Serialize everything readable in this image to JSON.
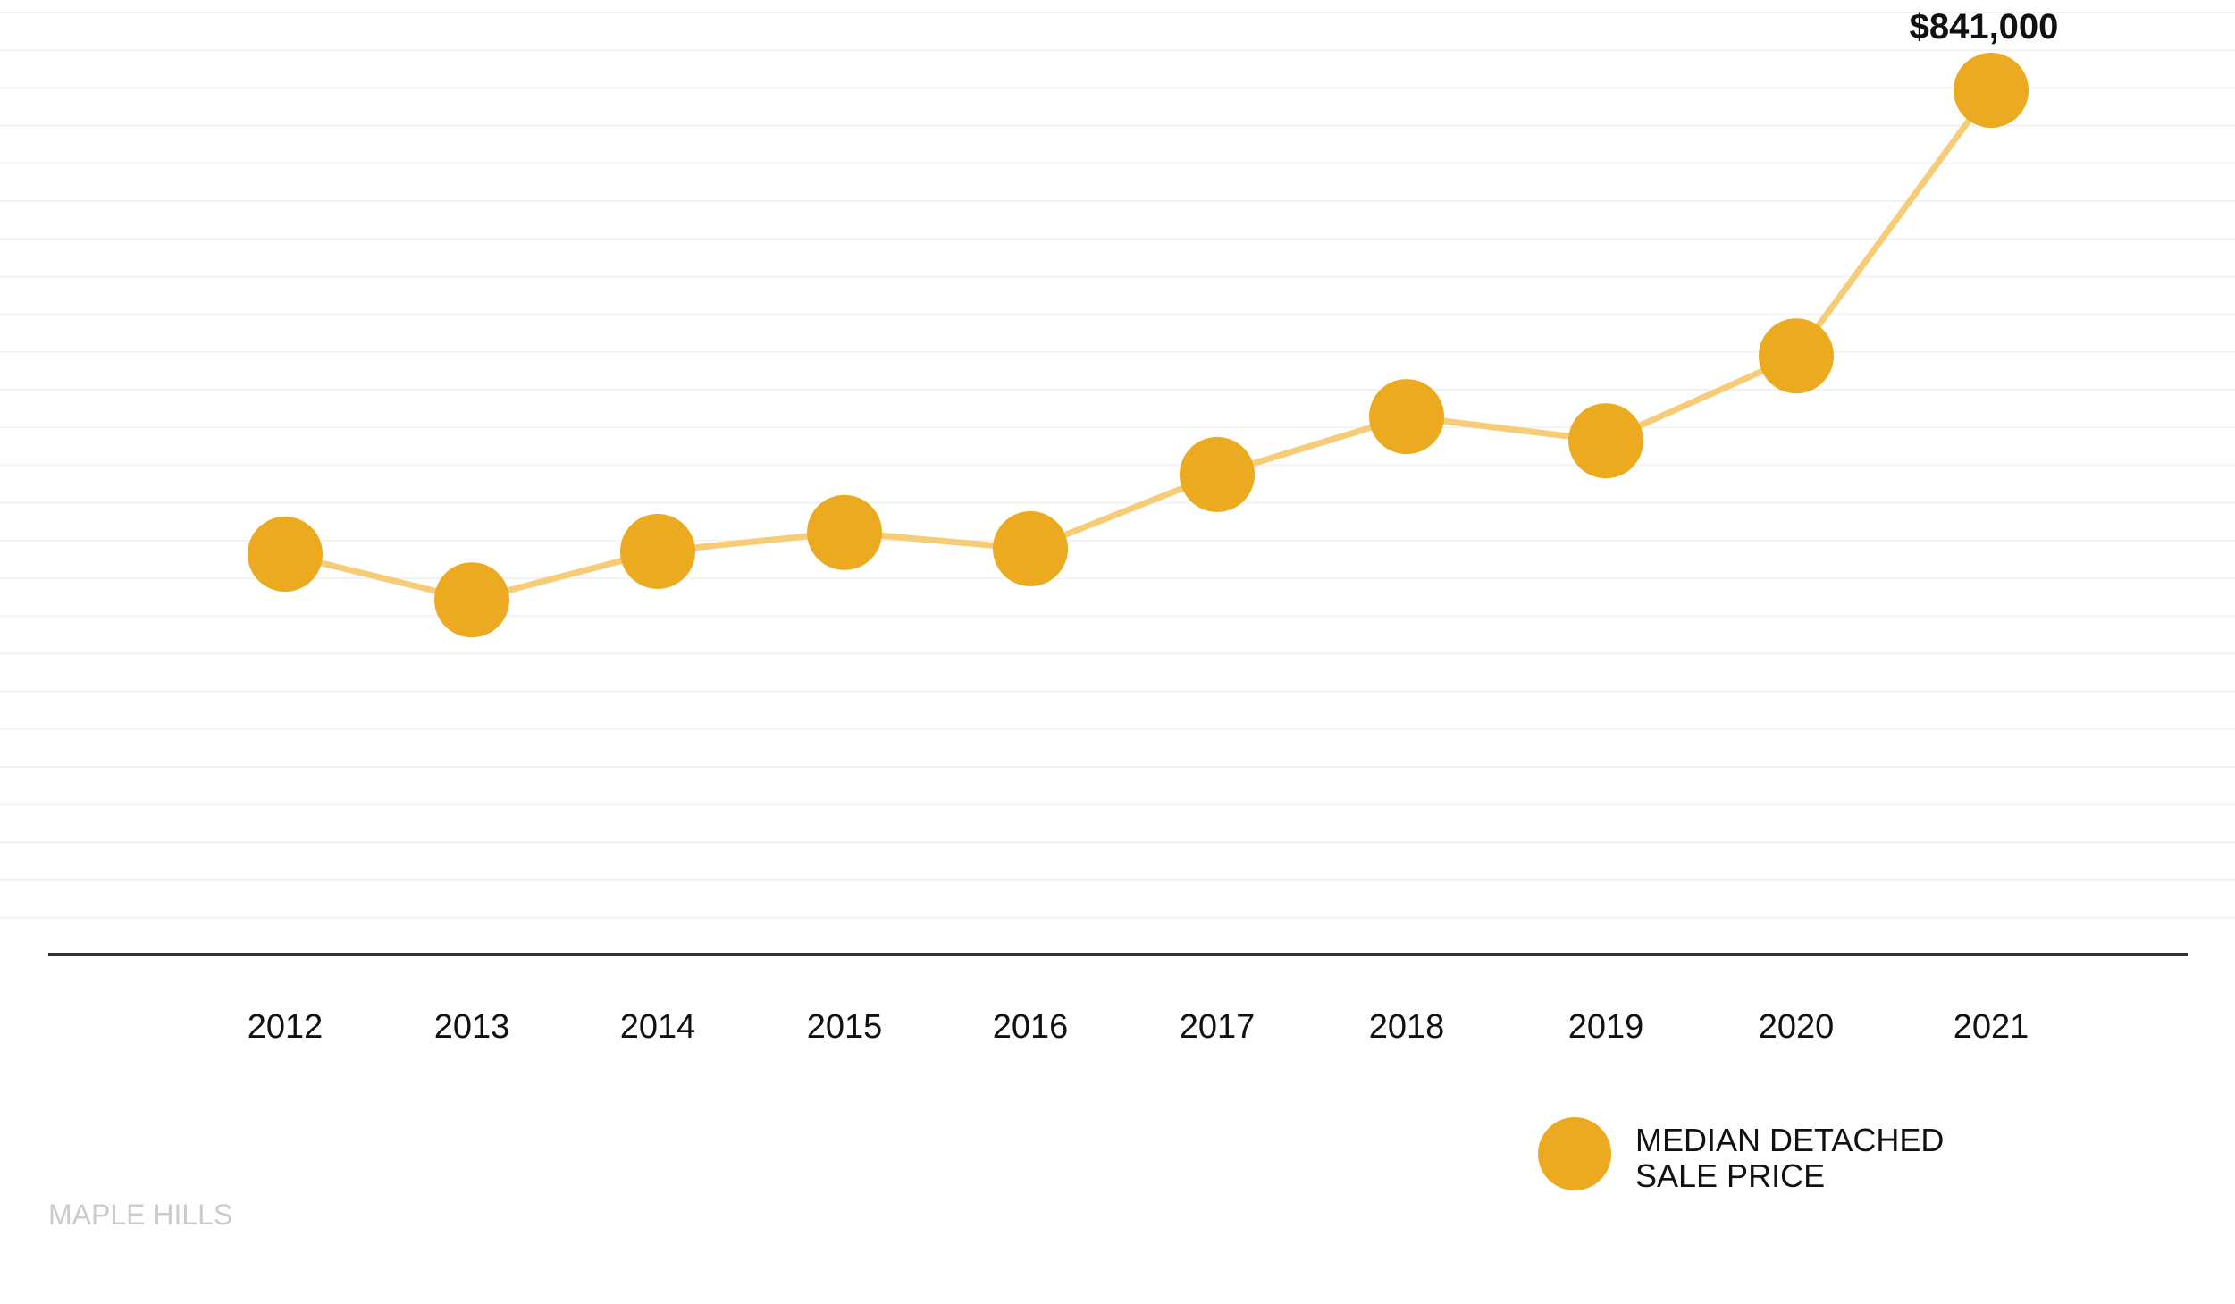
{
  "chart_data": {
    "type": "line",
    "categories": [
      "2012",
      "2013",
      "2014",
      "2015",
      "2016",
      "2017",
      "2018",
      "2019",
      "2020",
      "2021"
    ],
    "series": [
      {
        "name": "MEDIAN DETACHED SALE PRICE",
        "values": [
          497000,
          463000,
          499000,
          513000,
          501000,
          556000,
          599000,
          581000,
          644000,
          841000
        ],
        "color": "#EBAA20",
        "line_color": "#F6CC77"
      }
    ],
    "data_labels": [
      {
        "category": "2021",
        "text": "$841,000"
      }
    ],
    "ylim": [
      200000,
      900000
    ],
    "grid": true,
    "legend": {
      "position": "bottom-right",
      "lines": [
        "MEDIAN DETACHED",
        "SALE PRICE"
      ]
    },
    "source_label": "MAPLE HILLS",
    "axis_color": "#333333",
    "grid_color": "#f2f2f2"
  }
}
